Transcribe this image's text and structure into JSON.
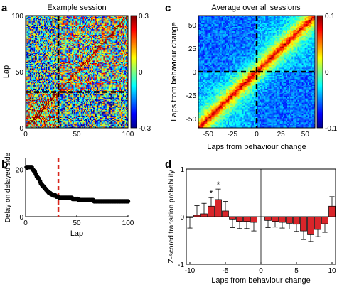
{
  "chart_data": [
    {
      "panel": "a",
      "type": "heatmap",
      "title": "Example session",
      "xlabel": "",
      "ylabel": "Lap",
      "xlim": [
        0,
        100
      ],
      "ylim": [
        0,
        100
      ],
      "xticks": [
        0,
        50,
        100
      ],
      "yticks": [
        0,
        50,
        100
      ],
      "colorbar": {
        "ticks": [
          0.3,
          0,
          -0.3
        ],
        "labels": [
          "0.3",
          "0",
          "-0.3"
        ],
        "range": [
          -0.3,
          0.3
        ]
      },
      "dashed_marker": 32,
      "grid_size": 100
    },
    {
      "panel": "b",
      "type": "line",
      "xlabel": "Lap",
      "ylabel": "Delay on delayed side",
      "xlim": [
        0,
        100
      ],
      "ylim": [
        0,
        25
      ],
      "xticks": [
        0,
        50,
        100
      ],
      "yticks": [
        0,
        20
      ],
      "dashed_marker": 32,
      "x": [
        1,
        2,
        3,
        4,
        5,
        6,
        7,
        8,
        9,
        10,
        11,
        12,
        13,
        14,
        15,
        16,
        17,
        18,
        19,
        20,
        21,
        22,
        23,
        24,
        25,
        26,
        27,
        28,
        29,
        30,
        31,
        32,
        33,
        34,
        35,
        36,
        37,
        38,
        39,
        40,
        41,
        42,
        43,
        44,
        45,
        46,
        47,
        48,
        49,
        50,
        51,
        52,
        53,
        54,
        55,
        56,
        57,
        58,
        59,
        60,
        61,
        62,
        63,
        64,
        65,
        66,
        67,
        68,
        69,
        70,
        71,
        72,
        73,
        74,
        75,
        76,
        77,
        78,
        79,
        80,
        81,
        82,
        83,
        84,
        85,
        86,
        87,
        88,
        89,
        90,
        91,
        92,
        93,
        94,
        95,
        96,
        97,
        98,
        99,
        100
      ],
      "y": [
        21,
        21,
        21,
        21,
        21,
        21,
        20,
        19.5,
        19,
        18,
        17,
        16.5,
        16,
        15,
        14,
        13.5,
        13,
        12.5,
        12,
        11.5,
        11,
        10.5,
        10,
        10,
        9.5,
        9.5,
        9,
        9,
        9,
        8.5,
        8.5,
        8.5,
        8,
        8,
        8,
        8,
        8,
        8,
        8,
        8,
        8,
        8,
        8,
        8,
        8,
        7.5,
        7.5,
        7.5,
        7.5,
        7.5,
        7.5,
        7,
        7,
        7,
        7,
        7,
        7,
        7,
        7,
        7,
        7,
        7,
        7,
        7,
        7,
        7,
        6.5,
        6.5,
        6.5,
        6.5,
        6.5,
        6.5,
        6.5,
        6.5,
        6.5,
        6.5,
        6.5,
        6.5,
        6.5,
        6.5,
        6.5,
        6.5,
        6.5,
        6.5,
        6.5,
        6.5,
        6.5,
        6.5,
        6.5,
        6.5,
        6.5,
        6.5,
        6.5,
        6.5,
        6.5,
        6.5,
        6.5,
        6.5,
        6.5,
        6.5
      ]
    },
    {
      "panel": "c",
      "type": "heatmap",
      "title": "Average over all sessions",
      "xlabel": "Laps from behaviour change",
      "ylabel": "Laps from behaviour change",
      "xlim": [
        -60,
        60
      ],
      "ylim": [
        -60,
        60
      ],
      "xticks": [
        -50,
        -25,
        0,
        25,
        50
      ],
      "yticks": [
        50,
        25,
        0,
        -25,
        -50
      ],
      "colorbar": {
        "ticks": [
          0.1,
          0,
          -0.1
        ],
        "labels": [
          "0.1",
          "0",
          "-0.1"
        ],
        "range": [
          -0.1,
          0.1
        ]
      },
      "dashed_marker": 0,
      "grid_size": 80
    },
    {
      "panel": "d",
      "type": "bar",
      "xlabel": "Laps from behaviour change",
      "ylabel": "Z-scored transition probability",
      "xlim": [
        -10.5,
        10.5
      ],
      "ylim": [
        -1,
        1
      ],
      "xticks": [
        -10,
        -5,
        0,
        5,
        10
      ],
      "yticks": [
        1,
        0,
        -1
      ],
      "significance_marker": "*",
      "x": [
        -10,
        -9,
        -8,
        -7,
        -6,
        -5,
        -4,
        -3,
        -2,
        -1,
        1,
        2,
        3,
        4,
        5,
        6,
        7,
        8,
        9,
        10
      ],
      "values": [
        -0.02,
        0.03,
        0.06,
        0.22,
        0.36,
        0.12,
        -0.05,
        -0.1,
        -0.1,
        -0.12,
        -0.08,
        -0.1,
        -0.12,
        -0.14,
        -0.16,
        -0.3,
        -0.38,
        -0.27,
        -0.15,
        0.22
      ],
      "errors": [
        0.22,
        0.2,
        0.22,
        0.18,
        0.22,
        0.2,
        0.18,
        0.15,
        0.15,
        0.18,
        0.15,
        0.12,
        0.12,
        0.12,
        0.15,
        0.18,
        0.14,
        0.15,
        0.18,
        0.2
      ],
      "significant_x": [
        -7,
        -6
      ]
    }
  ]
}
